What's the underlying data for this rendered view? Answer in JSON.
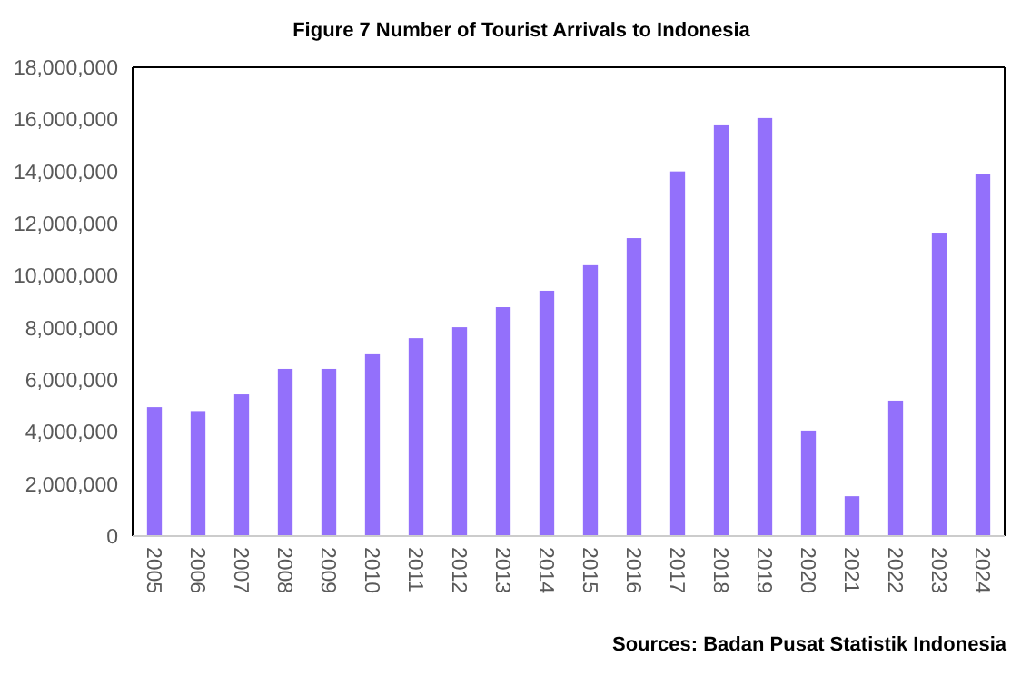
{
  "chart_data": {
    "type": "bar",
    "title": "Figure 7 Number of Tourist Arrivals to Indonesia",
    "categories": [
      "2005",
      "2006",
      "2007",
      "2008",
      "2009",
      "2010",
      "2011",
      "2012",
      "2013",
      "2014",
      "2015",
      "2016",
      "2017",
      "2018",
      "2019",
      "2020",
      "2021",
      "2022",
      "2023",
      "2024"
    ],
    "values": [
      4950000,
      4800000,
      5440000,
      6420000,
      6420000,
      6980000,
      7600000,
      8020000,
      8790000,
      9420000,
      10400000,
      11440000,
      14000000,
      15770000,
      16050000,
      4050000,
      1530000,
      5200000,
      11650000,
      13900000
    ],
    "color": "#9370fb",
    "ylim": [
      0,
      18000000
    ],
    "yticks": [
      {
        "value": 0,
        "label": "0"
      },
      {
        "value": 2000000,
        "label": "2,000,000"
      },
      {
        "value": 4000000,
        "label": "4,000,000"
      },
      {
        "value": 6000000,
        "label": "6,000,000"
      },
      {
        "value": 8000000,
        "label": "8,000,000"
      },
      {
        "value": 10000000,
        "label": "10,000,000"
      },
      {
        "value": 12000000,
        "label": "12,000,000"
      },
      {
        "value": 14000000,
        "label": "14,000,000"
      },
      {
        "value": 16000000,
        "label": "16,000,000"
      },
      {
        "value": 18000000,
        "label": "18,000,000"
      }
    ],
    "grid": false,
    "annotations": [
      "Sources: Badan Pusat Statistik Indonesia"
    ]
  }
}
